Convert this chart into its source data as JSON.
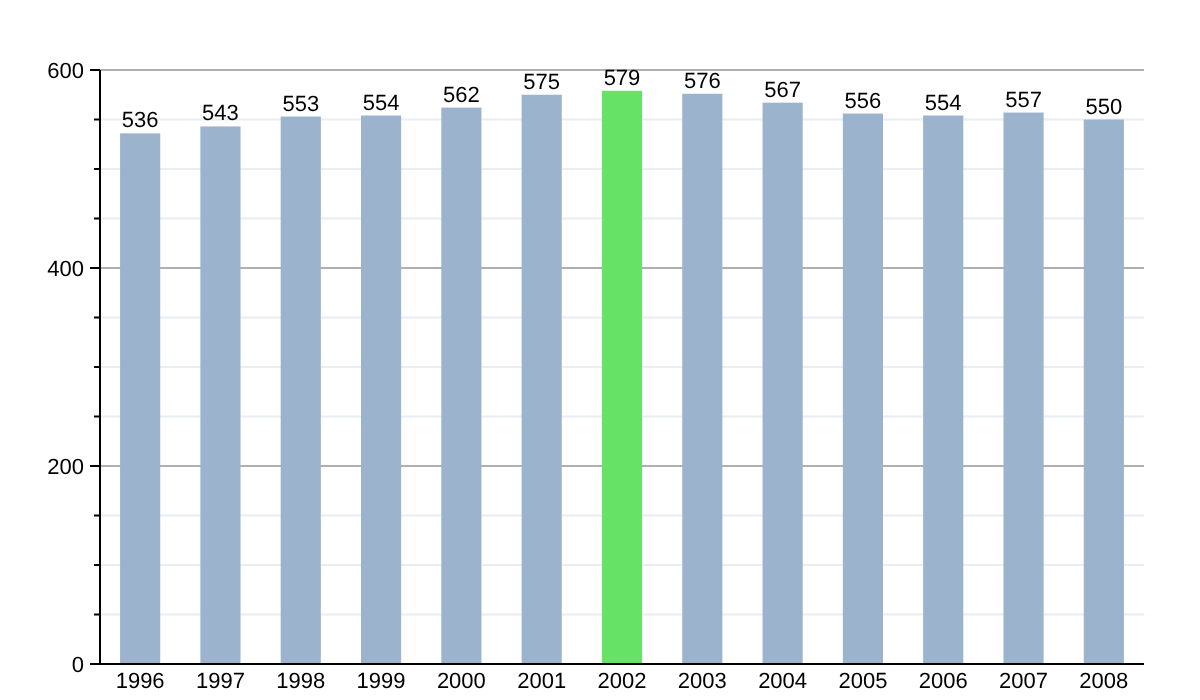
{
  "chart_data": {
    "type": "bar",
    "categories": [
      "1996",
      "1997",
      "1998",
      "1999",
      "2000",
      "2001",
      "2002",
      "2003",
      "2004",
      "2005",
      "2006",
      "2007",
      "2008"
    ],
    "values": [
      536,
      543,
      553,
      554,
      562,
      575,
      579,
      576,
      567,
      556,
      554,
      557,
      550
    ],
    "colors": [
      "#9bb3cd",
      "#9bb3cd",
      "#9bb3cd",
      "#9bb3cd",
      "#9bb3cd",
      "#9bb3cd",
      "#66e366",
      "#9bb3cd",
      "#9bb3cd",
      "#9bb3cd",
      "#9bb3cd",
      "#9bb3cd",
      "#9bb3cd"
    ],
    "ylim": [
      0,
      600
    ],
    "yticks": [
      0,
      {
        "value": 50,
        "label": null
      },
      {
        "value": 100,
        "label": null
      },
      {
        "value": 150,
        "label": null
      },
      200,
      {
        "value": 250,
        "label": null
      },
      {
        "value": 300,
        "label": null
      },
      {
        "value": 350,
        "label": null
      },
      400,
      {
        "value": 450,
        "label": null
      },
      {
        "value": 500,
        "label": null
      },
      {
        "value": 550,
        "label": null
      },
      600
    ],
    "grid": true,
    "data_labels": true
  }
}
